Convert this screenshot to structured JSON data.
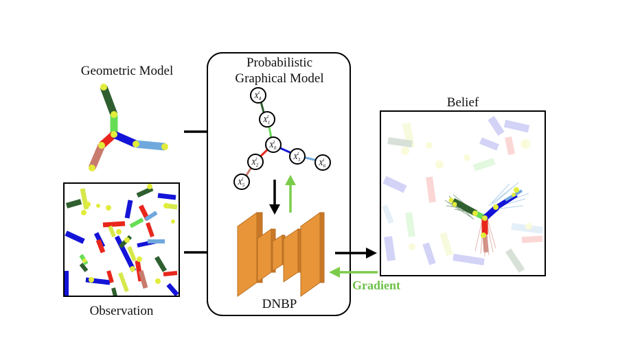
{
  "labels": {
    "geometric_model": "Geometric Model",
    "pgm_line1": "Probabilistic",
    "pgm_line2": "Graphical Model",
    "belief": "Belief",
    "observation": "Observation",
    "dnbp": "DNBP",
    "gradient": "Gradient"
  },
  "nodes": [
    {
      "id": "x4",
      "base": "X",
      "sub": "4",
      "sup": "t"
    },
    {
      "id": "x1",
      "base": "X",
      "sub": "1",
      "sup": "t"
    },
    {
      "id": "x0",
      "base": "X",
      "sub": "0",
      "sup": "t"
    },
    {
      "id": "x2",
      "base": "X",
      "sub": "2",
      "sup": "t"
    },
    {
      "id": "x3",
      "base": "X",
      "sub": "3",
      "sup": "t"
    },
    {
      "id": "x5",
      "base": "X",
      "sub": "5",
      "sup": "t"
    },
    {
      "id": "x6",
      "base": "X",
      "sub": "6",
      "sup": "t"
    }
  ],
  "colors": {
    "arrow_black": "#000000",
    "arrow_green": "#7ccc4c",
    "gradient_text": "#6cc04a",
    "network_orange": "#e8953a",
    "network_edge": "#b86e22",
    "part_dark_green": "#2f5f2f",
    "part_light_green": "#66dd55",
    "part_red": "#e8261c",
    "part_pink": "#c97b6e",
    "part_blue": "#1414d8",
    "part_light_blue": "#6fa8dc",
    "part_yellow": "#d6e84a",
    "joint_yellow": "#e2ec3a"
  }
}
